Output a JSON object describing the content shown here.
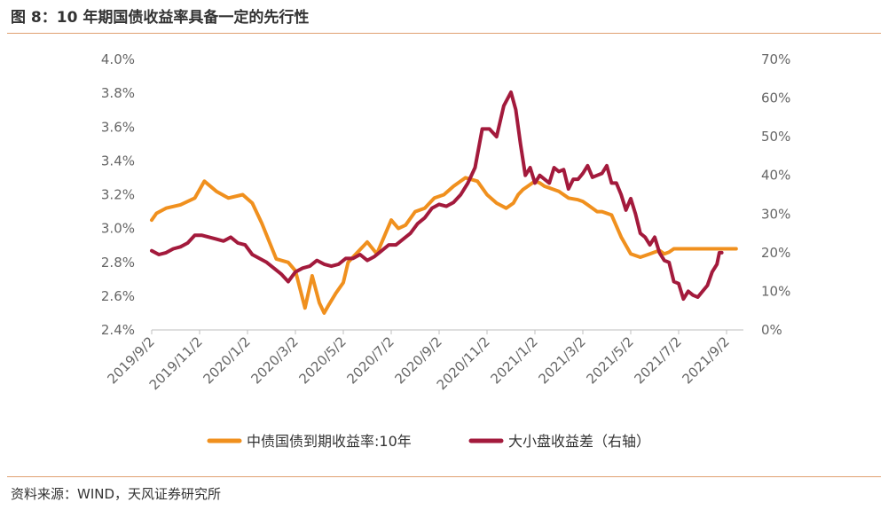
{
  "title": "图 8：10 年期国债收益率具备一定的先行性",
  "source": "资料来源：WIND，天风证券研究所",
  "chart_data": {
    "type": "line",
    "title": "图 8：10 年期国债收益率具备一定的先行性",
    "xlabel": "",
    "ylabel_left": "",
    "ylabel_right": "",
    "x_ticks": [
      "2019/9/2",
      "2019/11/2",
      "2020/1/2",
      "2020/3/2",
      "2020/5/2",
      "2020/7/2",
      "2020/9/2",
      "2020/11/2",
      "2021/1/2",
      "2021/3/2",
      "2021/5/2",
      "2021/7/2",
      "2021/9/2"
    ],
    "y_left": {
      "min": 2.4,
      "max": 4.0,
      "ticks": [
        "4.0%",
        "3.8%",
        "3.6%",
        "3.4%",
        "3.2%",
        "3.0%",
        "2.8%",
        "2.6%",
        "2.4%"
      ]
    },
    "y_right": {
      "min": 0,
      "max": 70,
      "ticks": [
        "70%",
        "60%",
        "50%",
        "40%",
        "30%",
        "20%",
        "10%",
        "0%"
      ]
    },
    "legend_position": "bottom",
    "series": [
      {
        "name": "中债国债到期收益率:10年",
        "axis": "left",
        "color": "#f0901e",
        "x": [
          0,
          0.1,
          0.3,
          0.6,
          0.9,
          1.1,
          1.35,
          1.6,
          1.9,
          2.1,
          2.3,
          2.6,
          2.85,
          3.0,
          3.2,
          3.35,
          3.5,
          3.6,
          3.7,
          3.85,
          4.0,
          4.1,
          4.3,
          4.5,
          4.7,
          4.85,
          5.0,
          5.15,
          5.3,
          5.5,
          5.7,
          5.9,
          6.1,
          6.3,
          6.55,
          6.8,
          7.0,
          7.2,
          7.4,
          7.55,
          7.65,
          7.75,
          7.85,
          8.0,
          8.1,
          8.2,
          8.3,
          8.5,
          8.7,
          8.9,
          9.0,
          9.1,
          9.2,
          9.3,
          9.4,
          9.6,
          9.8,
          10.0,
          10.2,
          10.4,
          10.5,
          10.6,
          10.7,
          10.8,
          10.9,
          11.0,
          11.2,
          11.4,
          11.6,
          11.8,
          11.9,
          12.0,
          12.1,
          12.2
        ],
        "values": [
          3.05,
          3.09,
          3.12,
          3.14,
          3.18,
          3.28,
          3.22,
          3.18,
          3.2,
          3.15,
          3.03,
          2.82,
          2.8,
          2.75,
          2.53,
          2.72,
          2.56,
          2.5,
          2.55,
          2.62,
          2.68,
          2.8,
          2.86,
          2.92,
          2.85,
          2.95,
          3.05,
          3.0,
          3.02,
          3.1,
          3.12,
          3.18,
          3.2,
          3.25,
          3.3,
          3.28,
          3.2,
          3.15,
          3.12,
          3.15,
          3.2,
          3.23,
          3.25,
          3.28,
          3.27,
          3.25,
          3.24,
          3.22,
          3.18,
          3.17,
          3.16,
          3.14,
          3.12,
          3.1,
          3.1,
          3.08,
          2.95,
          2.85,
          2.83,
          2.85,
          2.86,
          2.87,
          2.85,
          2.86,
          2.88,
          2.88,
          2.88,
          2.88,
          2.88,
          2.88,
          2.88,
          2.88,
          2.88,
          2.88
        ]
      },
      {
        "name": "大小盘收益差（右轴）",
        "axis": "right",
        "color": "#a31a3c",
        "x": [
          0,
          0.15,
          0.3,
          0.45,
          0.6,
          0.75,
          0.9,
          1.05,
          1.2,
          1.35,
          1.5,
          1.65,
          1.8,
          1.95,
          2.1,
          2.25,
          2.4,
          2.55,
          2.7,
          2.85,
          3.0,
          3.15,
          3.3,
          3.45,
          3.6,
          3.75,
          3.9,
          4.05,
          4.2,
          4.35,
          4.5,
          4.65,
          4.8,
          4.95,
          5.1,
          5.25,
          5.4,
          5.55,
          5.7,
          5.85,
          6.0,
          6.15,
          6.3,
          6.45,
          6.6,
          6.75,
          6.9,
          7.05,
          7.2,
          7.35,
          7.5,
          7.6,
          7.7,
          7.8,
          7.9,
          8.0,
          8.1,
          8.2,
          8.3,
          8.4,
          8.5,
          8.6,
          8.7,
          8.8,
          8.9,
          9.0,
          9.1,
          9.2,
          9.3,
          9.4,
          9.5,
          9.6,
          9.7,
          9.8,
          9.9,
          10.0,
          10.1,
          10.2,
          10.3,
          10.4,
          10.5,
          10.6,
          10.7,
          10.8,
          10.9,
          11.0,
          11.1,
          11.2,
          11.3,
          11.4,
          11.5,
          11.6,
          11.7,
          11.8,
          11.85,
          11.9
        ],
        "values": [
          20.5,
          19.5,
          20.0,
          21.0,
          21.5,
          22.5,
          24.5,
          24.5,
          24.0,
          23.5,
          23.0,
          24.0,
          22.5,
          22.0,
          19.5,
          18.5,
          17.5,
          16.0,
          14.5,
          12.5,
          15.0,
          16.0,
          16.5,
          18.0,
          17.0,
          16.5,
          17.0,
          18.5,
          18.5,
          19.5,
          18.0,
          19.0,
          20.5,
          22.0,
          22.0,
          23.5,
          25.0,
          27.5,
          29.0,
          31.5,
          32.5,
          32.0,
          33.0,
          35.0,
          38.0,
          42.0,
          52.0,
          52.0,
          50.0,
          58.0,
          61.5,
          57.0,
          48.0,
          40.0,
          42.0,
          38.0,
          40.0,
          39.0,
          38.0,
          42.0,
          41.0,
          41.5,
          36.5,
          39.0,
          39.0,
          40.5,
          42.5,
          39.5,
          40.0,
          40.5,
          42.5,
          38.0,
          38.0,
          35.0,
          31.0,
          34.0,
          30.0,
          25.0,
          24.0,
          22.0,
          24.0,
          20.0,
          18.0,
          17.5,
          12.5,
          12.0,
          8.0,
          10.0,
          9.0,
          8.5,
          10.0,
          11.5,
          15.0,
          17.0,
          20.0,
          20.0
        ]
      }
    ]
  }
}
